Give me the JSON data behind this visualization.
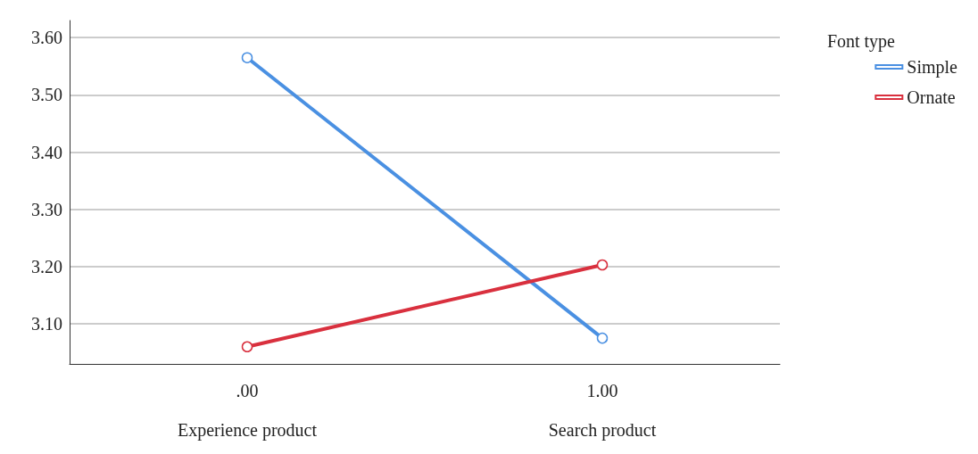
{
  "chart_data": {
    "type": "line",
    "categories": [
      ".00",
      "1.00"
    ],
    "series": [
      {
        "name": "Simple",
        "color": "#4a90e2",
        "values": [
          3.565,
          3.075
        ]
      },
      {
        "name": "Ornate",
        "color": "#d9303e",
        "values": [
          3.06,
          3.203
        ]
      }
    ],
    "ylim": [
      3.03,
      3.63
    ],
    "yticks": [
      {
        "value": 3.1,
        "label": "3.10"
      },
      {
        "value": 3.2,
        "label": "3.20"
      },
      {
        "value": 3.3,
        "label": "3.30"
      },
      {
        "value": 3.4,
        "label": "3.40"
      },
      {
        "value": 3.5,
        "label": "3.50"
      },
      {
        "value": 3.6,
        "label": "3.60"
      }
    ],
    "grid": "y",
    "legend": "top right",
    "legend_title": "Font type",
    "marker": "circle",
    "line_style": "solid",
    "annotations": [
      "Experience product",
      "Search product"
    ]
  }
}
